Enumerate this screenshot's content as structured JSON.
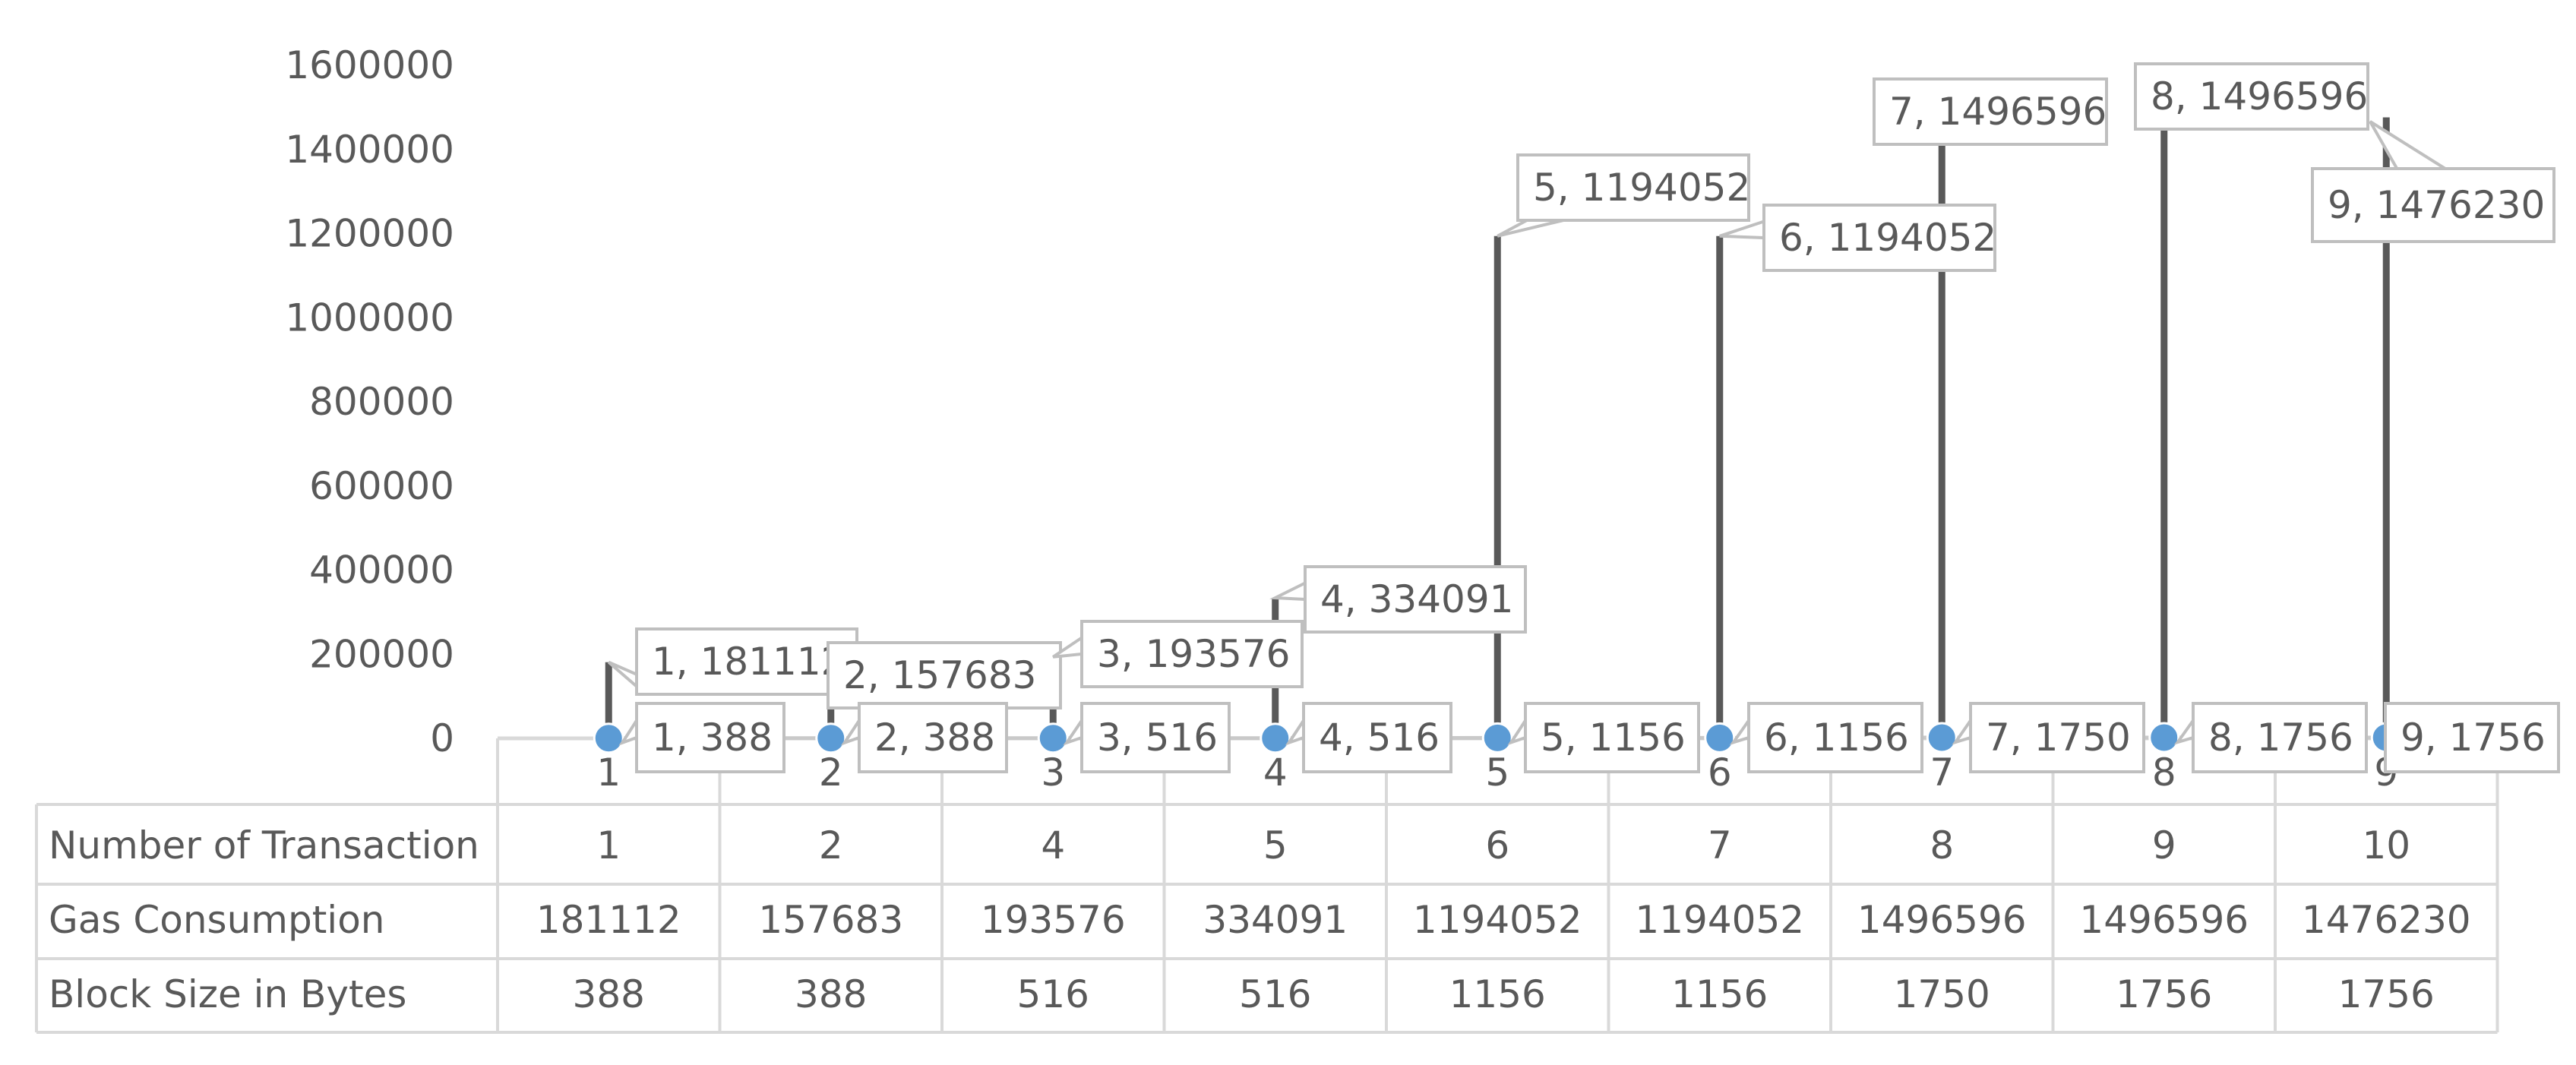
{
  "chart_data": {
    "type": "line",
    "title": "",
    "xlabel": "",
    "ylabel": "",
    "ylim": [
      0,
      1600000
    ],
    "yticks": [
      0,
      200000,
      400000,
      600000,
      800000,
      1000000,
      1200000,
      1400000,
      1600000
    ],
    "categories": [
      "1",
      "2",
      "3",
      "4",
      "5",
      "6",
      "7",
      "8",
      "9"
    ],
    "series": [
      {
        "name": "Gas Consumption",
        "color": "#595959",
        "values": [
          181112,
          157683,
          193576,
          334091,
          1194052,
          1194052,
          1496596,
          1496596,
          1476230
        ],
        "data_labels": [
          "1, 181112",
          "2, 157683",
          "3, 193576",
          "4, 334091",
          "5, 1194052",
          "6, 1194052",
          "7, 1496596",
          "8, 1496596",
          "9, 1476230"
        ]
      },
      {
        "name": "Block Size in Bytes",
        "color": "#5b9bd5",
        "values": [
          388,
          388,
          516,
          516,
          1156,
          1156,
          1750,
          1756,
          1756
        ],
        "data_labels": [
          "1, 388",
          "2, 388",
          "3, 516",
          "4, 516",
          "5, 1156",
          "6, 1156",
          "7, 1750",
          "8, 1756",
          "9, 1756"
        ]
      }
    ],
    "table": {
      "rows": [
        {
          "label": "Number of Transaction",
          "values": [
            "1",
            "2",
            "4",
            "5",
            "6",
            "7",
            "8",
            "9",
            "10"
          ]
        },
        {
          "label": "Gas Consumption",
          "values": [
            "181112",
            "157683",
            "193576",
            "334091",
            "1194052",
            "1194052",
            "1496596",
            "1496596",
            "1476230"
          ]
        },
        {
          "label": "Block Size in Bytes",
          "values": [
            "388",
            "388",
            "516",
            "516",
            "1156",
            "1156",
            "1750",
            "1756",
            "1756"
          ]
        }
      ]
    },
    "grid": false,
    "legend": "none"
  }
}
